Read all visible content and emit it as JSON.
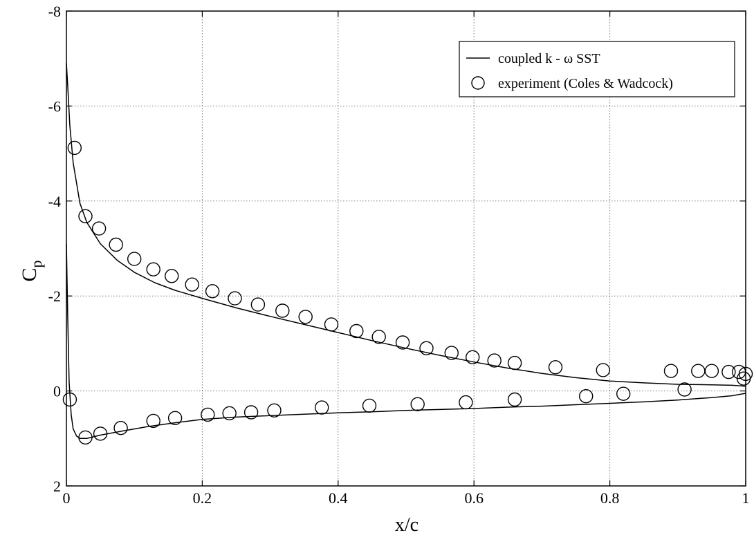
{
  "chart_data": {
    "type": "line",
    "xlabel": "x/c",
    "ylabel": {
      "main": "C",
      "sub": "p"
    },
    "xlim": [
      0,
      1
    ],
    "ylim": [
      2,
      -8
    ],
    "y_inverted": true,
    "grid": true,
    "grid_style": "dotted",
    "legend_placement": "top-right",
    "xticks": [
      "0",
      "0.2",
      "0.4",
      "0.6",
      "0.8",
      "1"
    ],
    "xtick_values": [
      0,
      0.2,
      0.4,
      0.6,
      0.8,
      1
    ],
    "yticks": [
      "-8",
      "-6",
      "-4",
      "-2",
      "0",
      "2"
    ],
    "ytick_values": [
      -8,
      -6,
      -4,
      -2,
      0,
      2
    ],
    "series": [
      {
        "name": "coupled k - ω SST",
        "kind": "line",
        "branches": [
          {
            "surface": "upper",
            "x": [
              0,
              0.002,
              0.005,
              0.01,
              0.02,
              0.03,
              0.05,
              0.075,
              0.1,
              0.13,
              0.16,
              0.2,
              0.25,
              0.3,
              0.35,
              0.4,
              0.45,
              0.5,
              0.55,
              0.6,
              0.65,
              0.7,
              0.75,
              0.8,
              0.85,
              0.9,
              0.95,
              0.98,
              1.0
            ],
            "y": [
              -6.9,
              -6.4,
              -5.6,
              -4.8,
              -3.95,
              -3.55,
              -3.1,
              -2.75,
              -2.5,
              -2.28,
              -2.12,
              -1.95,
              -1.75,
              -1.57,
              -1.4,
              -1.23,
              -1.06,
              -0.9,
              -0.75,
              -0.61,
              -0.48,
              -0.37,
              -0.28,
              -0.21,
              -0.17,
              -0.14,
              -0.13,
              -0.12,
              -0.1
            ]
          },
          {
            "surface": "lower",
            "x": [
              0,
              0.002,
              0.004,
              0.007,
              0.01,
              0.015,
              0.02,
              0.03,
              0.05,
              0.08,
              0.12,
              0.16,
              0.2,
              0.25,
              0.3,
              0.35,
              0.4,
              0.45,
              0.5,
              0.55,
              0.6,
              0.65,
              0.7,
              0.75,
              0.8,
              0.85,
              0.9,
              0.95,
              0.98,
              1.0
            ],
            "y": [
              -3.1,
              -1.5,
              -0.2,
              0.5,
              0.8,
              0.95,
              1.0,
              1.0,
              0.93,
              0.85,
              0.75,
              0.67,
              0.6,
              0.55,
              0.52,
              0.49,
              0.46,
              0.44,
              0.41,
              0.39,
              0.37,
              0.34,
              0.32,
              0.29,
              0.26,
              0.23,
              0.19,
              0.14,
              0.1,
              0.05
            ]
          }
        ]
      },
      {
        "name": "experiment (Coles & Wadcock)",
        "kind": "scatter",
        "marker": "open-circle",
        "x": [
          0.012,
          0.028,
          0.048,
          0.073,
          0.1,
          0.128,
          0.155,
          0.185,
          0.215,
          0.248,
          0.282,
          0.318,
          0.352,
          0.39,
          0.427,
          0.46,
          0.495,
          0.53,
          0.567,
          0.598,
          0.63,
          0.66,
          0.72,
          0.79,
          0.89,
          0.93,
          0.95,
          0.975,
          0.99,
          0.997,
          1.0,
          0.005,
          0.028,
          0.05,
          0.08,
          0.128,
          0.16,
          0.208,
          0.24,
          0.272,
          0.306,
          0.376,
          0.446,
          0.517,
          0.588,
          0.66,
          0.765,
          0.82,
          0.91
        ],
        "y": [
          -5.12,
          -3.68,
          -3.42,
          -3.08,
          -2.78,
          -2.56,
          -2.42,
          -2.24,
          -2.1,
          -1.95,
          -1.82,
          -1.69,
          -1.56,
          -1.4,
          -1.26,
          -1.14,
          -1.02,
          -0.9,
          -0.8,
          -0.71,
          -0.64,
          -0.59,
          -0.5,
          -0.44,
          -0.42,
          -0.42,
          -0.42,
          -0.4,
          -0.4,
          -0.26,
          -0.36,
          0.18,
          0.98,
          0.9,
          0.78,
          0.63,
          0.57,
          0.5,
          0.47,
          0.45,
          0.41,
          0.35,
          0.31,
          0.28,
          0.24,
          0.18,
          0.11,
          0.06,
          -0.03
        ]
      }
    ]
  }
}
